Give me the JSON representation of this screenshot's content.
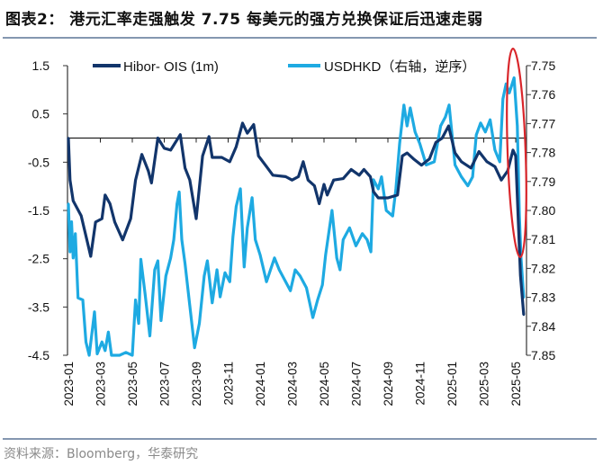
{
  "title": "图表2：  港元汇率走强触发 7.75 每美元的强方兑换保证后迅速走弱",
  "source": "资料来源：Bloomberg，华泰研究",
  "chart_data": {
    "type": "line",
    "title": "",
    "xlabel": "",
    "ylabel_left": "",
    "ylabel_right": "",
    "x_ticks": [
      "2023-01",
      "2023-03",
      "2023-05",
      "2023-07",
      "2023-09",
      "2023-11",
      "2024-01",
      "2024-03",
      "2024-05",
      "2024-07",
      "2024-09",
      "2024-11",
      "2025-01",
      "2025-03",
      "2025-05"
    ],
    "x_range": [
      "2023-01-01",
      "2025-05-19"
    ],
    "y_left": {
      "ticks": [
        "1.5",
        "0.5",
        "-0.5",
        "-1.5",
        "-2.5",
        "-3.5",
        "-4.5"
      ],
      "range": [
        -4.5,
        1.5
      ]
    },
    "y_right": {
      "ticks": [
        "7.75",
        "7.76",
        "7.77",
        "7.78",
        "7.79",
        "7.80",
        "7.81",
        "7.82",
        "7.83",
        "7.84",
        "7.85"
      ],
      "range": [
        7.75,
        7.85
      ],
      "reversed": true
    },
    "reference_line": 0,
    "legend_position": "top",
    "annotation": "red-ellipse around May 2025 drop",
    "colors": {
      "hibor": "#12356b",
      "usdhkd": "#1eaae2",
      "annotation": "#d9262b"
    },
    "series": [
      {
        "name": "Hibor- OIS (1m)",
        "axis": "left",
        "points": [
          [
            "2023-01-01",
            0
          ],
          [
            "2023-01-04",
            -0.87
          ],
          [
            "2023-01-10",
            -1.3
          ],
          [
            "2023-01-25",
            -1.61
          ],
          [
            "2023-02-07",
            -2.17
          ],
          [
            "2023-02-13",
            -2.45
          ],
          [
            "2023-02-22",
            -1.74
          ],
          [
            "2023-03-04",
            -1.67
          ],
          [
            "2023-03-10",
            -1.18
          ],
          [
            "2023-03-19",
            -1.36
          ],
          [
            "2023-03-28",
            -1.74
          ],
          [
            "2023-04-13",
            -2.11
          ],
          [
            "2023-04-28",
            -1.67
          ],
          [
            "2023-05-07",
            -0.87
          ],
          [
            "2023-05-19",
            -0.34
          ],
          [
            "2023-06-01",
            -0.68
          ],
          [
            "2023-06-07",
            -0.93
          ],
          [
            "2023-06-19",
            0
          ],
          [
            "2023-07-01",
            -0.21
          ],
          [
            "2023-07-13",
            -0.25
          ],
          [
            "2023-08-01",
            0.07
          ],
          [
            "2023-08-10",
            -0.62
          ],
          [
            "2023-08-19",
            -0.87
          ],
          [
            "2023-09-01",
            -1.67
          ],
          [
            "2023-09-13",
            -0.37
          ],
          [
            "2023-09-25",
            0.03
          ],
          [
            "2023-10-01",
            -0.4
          ],
          [
            "2023-10-19",
            -0.4
          ],
          [
            "2023-11-04",
            -0.49
          ],
          [
            "2023-11-16",
            -0.18
          ],
          [
            "2023-11-28",
            0.31
          ],
          [
            "2023-12-07",
            0.1
          ],
          [
            "2023-12-19",
            0.28
          ],
          [
            "2023-12-28",
            -0.37
          ],
          [
            "2024-01-13",
            -0.59
          ],
          [
            "2024-01-25",
            -0.77
          ],
          [
            "2024-02-19",
            -0.8
          ],
          [
            "2024-03-01",
            -0.87
          ],
          [
            "2024-03-13",
            -0.8
          ],
          [
            "2024-03-22",
            -0.49
          ],
          [
            "2024-04-01",
            -0.87
          ],
          [
            "2024-04-13",
            -0.99
          ],
          [
            "2024-04-22",
            -1.36
          ],
          [
            "2024-05-01",
            -0.96
          ],
          [
            "2024-05-07",
            -1.18
          ],
          [
            "2024-05-19",
            -0.87
          ],
          [
            "2024-06-07",
            -0.84
          ],
          [
            "2024-06-22",
            -0.65
          ],
          [
            "2024-07-07",
            -0.77
          ],
          [
            "2024-07-16",
            -0.65
          ],
          [
            "2024-07-28",
            -0.8
          ],
          [
            "2024-08-04",
            -1.11
          ],
          [
            "2024-08-13",
            -1.24
          ],
          [
            "2024-09-01",
            -1.24
          ],
          [
            "2024-09-19",
            -1.18
          ],
          [
            "2024-09-28",
            -0.37
          ],
          [
            "2024-10-07",
            -0.31
          ],
          [
            "2024-10-19",
            -0.43
          ],
          [
            "2024-11-04",
            -0.56
          ],
          [
            "2024-11-19",
            -0.43
          ],
          [
            "2024-12-01",
            -0.09
          ],
          [
            "2024-12-13",
            0
          ],
          [
            "2024-12-25",
            0.25
          ],
          [
            "2025-01-07",
            -0.31
          ],
          [
            "2025-01-19",
            -0.49
          ],
          [
            "2025-02-07",
            -0.62
          ],
          [
            "2025-02-22",
            -0.28
          ],
          [
            "2025-03-07",
            -0.49
          ],
          [
            "2025-03-22",
            -0.59
          ],
          [
            "2025-04-04",
            -0.87
          ],
          [
            "2025-04-16",
            -0.68
          ],
          [
            "2025-04-26",
            -0.25
          ],
          [
            "2025-05-01",
            -0.37
          ],
          [
            "2025-05-05",
            -1.49
          ],
          [
            "2025-05-10",
            -2.85
          ],
          [
            "2025-05-16",
            -3.66
          ]
        ]
      },
      {
        "name": "USDHKD（右轴，逆序）",
        "axis": "right",
        "points": [
          [
            "2023-01-01",
            7.7977
          ],
          [
            "2023-01-04",
            7.8143
          ],
          [
            "2023-01-07",
            7.8039
          ],
          [
            "2023-01-10",
            7.8164
          ],
          [
            "2023-01-14",
            7.808
          ],
          [
            "2023-01-19",
            7.8302
          ],
          [
            "2023-01-28",
            7.8309
          ],
          [
            "2023-02-04",
            7.8454
          ],
          [
            "2023-02-10",
            7.85
          ],
          [
            "2023-02-16",
            7.8412
          ],
          [
            "2023-02-20",
            7.835
          ],
          [
            "2023-02-25",
            7.8495
          ],
          [
            "2023-03-04",
            7.8454
          ],
          [
            "2023-03-10",
            7.8484
          ],
          [
            "2023-03-16",
            7.842
          ],
          [
            "2023-03-22",
            7.85
          ],
          [
            "2023-04-07",
            7.85
          ],
          [
            "2023-04-19",
            7.849
          ],
          [
            "2023-05-01",
            7.85
          ],
          [
            "2023-05-07",
            7.8309
          ],
          [
            "2023-05-13",
            7.839
          ],
          [
            "2023-05-17",
            7.8169
          ],
          [
            "2023-05-25",
            7.8288
          ],
          [
            "2023-06-04",
            7.8433
          ],
          [
            "2023-06-13",
            7.8205
          ],
          [
            "2023-06-19",
            7.8174
          ],
          [
            "2023-06-25",
            7.838
          ],
          [
            "2023-07-04",
            7.8226
          ],
          [
            "2023-07-13",
            7.8164
          ],
          [
            "2023-07-19",
            7.8101
          ],
          [
            "2023-07-25",
            7.7977
          ],
          [
            "2023-07-29",
            7.7936
          ],
          [
            "2023-08-04",
            7.8101
          ],
          [
            "2023-08-10",
            7.8184
          ],
          [
            "2023-08-19",
            7.8329
          ],
          [
            "2023-08-28",
            7.8474
          ],
          [
            "2023-09-07",
            7.839
          ],
          [
            "2023-09-16",
            7.8226
          ],
          [
            "2023-09-22",
            7.8174
          ],
          [
            "2023-10-01",
            7.8319
          ],
          [
            "2023-10-10",
            7.8205
          ],
          [
            "2023-10-16",
            7.8298
          ],
          [
            "2023-10-25",
            7.8215
          ],
          [
            "2023-11-04",
            7.8246
          ],
          [
            "2023-11-10",
            7.8091
          ],
          [
            "2023-11-16",
            7.7987
          ],
          [
            "2023-11-24",
            7.7925
          ],
          [
            "2023-12-01",
            7.8195
          ],
          [
            "2023-12-07",
            7.806
          ],
          [
            "2023-12-16",
            7.7956
          ],
          [
            "2023-12-22",
            7.8101
          ],
          [
            "2024-01-01",
            7.8153
          ],
          [
            "2024-01-13",
            7.8246
          ],
          [
            "2024-01-28",
            7.8164
          ],
          [
            "2024-02-07",
            7.8205
          ],
          [
            "2024-02-19",
            7.8246
          ],
          [
            "2024-02-28",
            7.8277
          ],
          [
            "2024-03-07",
            7.8205
          ],
          [
            "2024-03-16",
            7.8226
          ],
          [
            "2024-03-28",
            7.8267
          ],
          [
            "2024-04-10",
            7.837
          ],
          [
            "2024-04-19",
            7.8309
          ],
          [
            "2024-04-28",
            7.8257
          ],
          [
            "2024-05-04",
            7.8153
          ],
          [
            "2024-05-16",
            7.8
          ],
          [
            "2024-05-25",
            7.8164
          ],
          [
            "2024-06-01",
            7.8205
          ],
          [
            "2024-06-07",
            7.8101
          ],
          [
            "2024-06-19",
            7.806
          ],
          [
            "2024-07-01",
            7.8122
          ],
          [
            "2024-07-13",
            7.808
          ],
          [
            "2024-07-22",
            7.8101
          ],
          [
            "2024-07-29",
            7.8143
          ],
          [
            "2024-08-04",
            7.7894
          ],
          [
            "2024-08-13",
            7.7925
          ],
          [
            "2024-08-19",
            7.7884
          ],
          [
            "2024-08-28",
            7.8
          ],
          [
            "2024-09-10",
            7.8019
          ],
          [
            "2024-09-16",
            7.7925
          ],
          [
            "2024-09-23",
            7.777
          ],
          [
            "2024-10-01",
            7.7636
          ],
          [
            "2024-10-07",
            7.7708
          ],
          [
            "2024-10-13",
            7.7646
          ],
          [
            "2024-10-22",
            7.7729
          ],
          [
            "2024-11-01",
            7.777
          ],
          [
            "2024-11-13",
            7.7843
          ],
          [
            "2024-11-28",
            7.7832
          ],
          [
            "2024-12-10",
            7.7708
          ],
          [
            "2024-12-19",
            7.7677
          ],
          [
            "2024-12-26",
            7.7636
          ],
          [
            "2025-01-07",
            7.7843
          ],
          [
            "2025-01-19",
            7.7884
          ],
          [
            "2025-02-01",
            7.7915
          ],
          [
            "2025-02-10",
            7.7884
          ],
          [
            "2025-02-17",
            7.7739
          ],
          [
            "2025-02-25",
            7.7698
          ],
          [
            "2025-03-04",
            7.7729
          ],
          [
            "2025-03-13",
            7.7687
          ],
          [
            "2025-03-22",
            7.7791
          ],
          [
            "2025-04-01",
            7.7832
          ],
          [
            "2025-04-07",
            7.7615
          ],
          [
            "2025-04-13",
            7.7563
          ],
          [
            "2025-04-19",
            7.7594
          ],
          [
            "2025-04-28",
            7.7542
          ],
          [
            "2025-05-04",
            7.7708
          ],
          [
            "2025-05-08",
            7.8019
          ],
          [
            "2025-05-11",
            7.8164
          ],
          [
            "2025-05-16",
            7.83
          ]
        ]
      }
    ]
  }
}
